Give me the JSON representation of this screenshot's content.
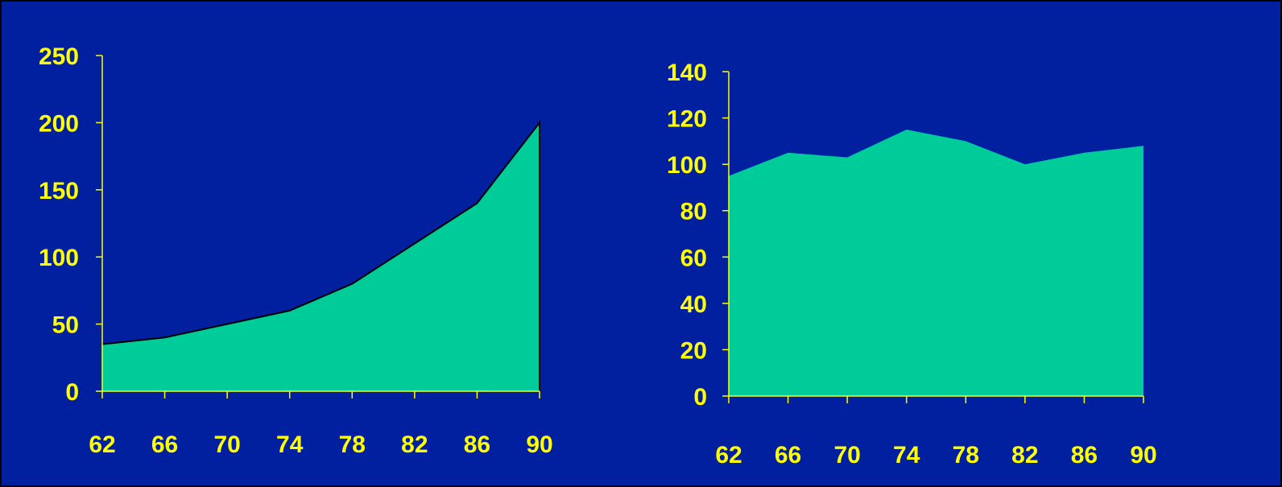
{
  "colors": {
    "background": "#00209f",
    "area_fill": "#00cc99",
    "axis": "#ffff00",
    "tick_text": "#ffff00",
    "area_outline": "#000000"
  },
  "chart_data": [
    {
      "type": "area",
      "title": "",
      "xlabel": "",
      "ylabel": "",
      "categories": [
        "62",
        "66",
        "70",
        "74",
        "78",
        "82",
        "86",
        "90"
      ],
      "series": [
        {
          "values": [
            35,
            40,
            50,
            60,
            80,
            110,
            140,
            200
          ]
        }
      ],
      "ylim": [
        0,
        250
      ],
      "yticks": [
        "0",
        "50",
        "100",
        "150",
        "200",
        "250"
      ],
      "grid": false,
      "legend": "none"
    },
    {
      "type": "area",
      "title": "",
      "xlabel": "",
      "ylabel": "",
      "categories": [
        "62",
        "66",
        "70",
        "74",
        "78",
        "82",
        "86",
        "90"
      ],
      "series": [
        {
          "values": [
            95,
            105,
            103,
            115,
            110,
            100,
            105,
            108
          ]
        }
      ],
      "ylim": [
        0,
        140
      ],
      "yticks": [
        "0",
        "20",
        "40",
        "60",
        "80",
        "100",
        "120",
        "140"
      ],
      "grid": false,
      "legend": "none"
    }
  ]
}
